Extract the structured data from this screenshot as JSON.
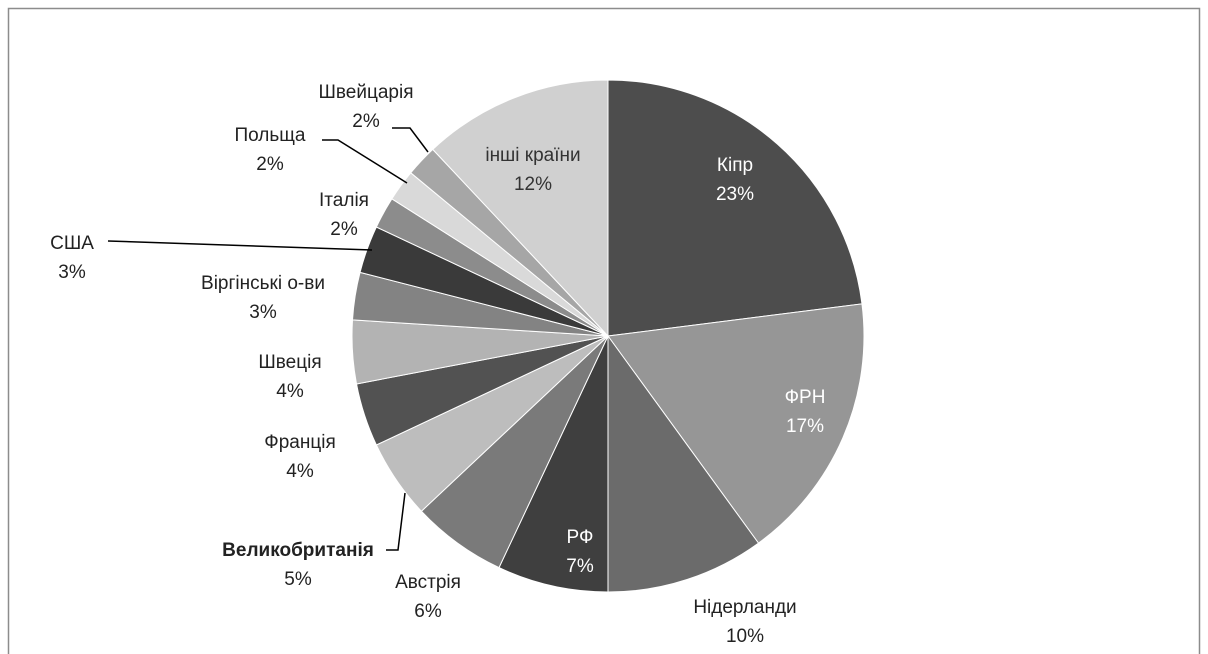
{
  "chart_data": {
    "type": "pie",
    "categories": [
      "Кіпр",
      "ФРН",
      "Нідерланди",
      "РФ",
      "Австрія",
      "Великобританія",
      "Франція",
      "Швеція",
      "Віргінські о-ви",
      "США",
      "Італія",
      "Польща",
      "Швейцарія",
      "інші країни"
    ],
    "values": [
      23,
      17,
      10,
      7,
      6,
      5,
      4,
      4,
      3,
      3,
      2,
      2,
      2,
      12
    ],
    "value_labels": [
      "23%",
      "17%",
      "10%",
      "7%",
      "6%",
      "5%",
      "4%",
      "4%",
      "3%",
      "3%",
      "2%",
      "2%",
      "2%",
      "12%"
    ],
    "colors": [
      "#4d4d4d",
      "#969696",
      "#6b6b6b",
      "#3f3f3f",
      "#7a7a7a",
      "#bdbdbd",
      "#525252",
      "#b3b3b3",
      "#838383",
      "#3a3a3a",
      "#8c8c8c",
      "#d9d9d9",
      "#a6a6a6",
      "#d0d0d0"
    ]
  }
}
